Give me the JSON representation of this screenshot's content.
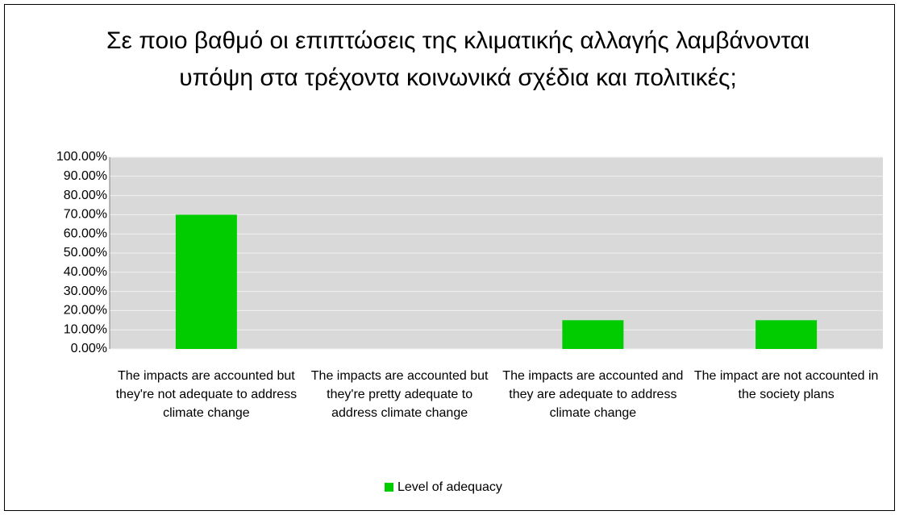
{
  "chart_data": {
    "type": "bar",
    "title": "Σε ποιο βαθμό οι επιπτώσεις της κλιματικής αλλαγής λαμβάνονται υπόψη στα τρέχοντα κοινωνικά σχέδια και πολιτικές;",
    "categories": [
      "The impacts are accounted but they're not adequate to address climate change",
      "The impacts are accounted but they're pretty adequate to address climate change",
      "The impacts are accounted and they are adequate to address climate change",
      "The impact are not accounted in the society plans"
    ],
    "series": [
      {
        "name": "Level of adequacy",
        "color": "#00cc00",
        "values": [
          70,
          0,
          15,
          15
        ]
      }
    ],
    "ylim": [
      0,
      100
    ],
    "yticks": [
      {
        "value": 0,
        "label": "0.00%"
      },
      {
        "value": 10,
        "label": "10.00%"
      },
      {
        "value": 20,
        "label": "20.00%"
      },
      {
        "value": 30,
        "label": "30.00%"
      },
      {
        "value": 40,
        "label": "40.00%"
      },
      {
        "value": 50,
        "label": "50.00%"
      },
      {
        "value": 60,
        "label": "60.00%"
      },
      {
        "value": 70,
        "label": "70.00%"
      },
      {
        "value": 80,
        "label": "80.00%"
      },
      {
        "value": 90,
        "label": "90.00%"
      },
      {
        "value": 100,
        "label": "100.00%"
      }
    ],
    "grid": true,
    "legend": "bottom"
  }
}
